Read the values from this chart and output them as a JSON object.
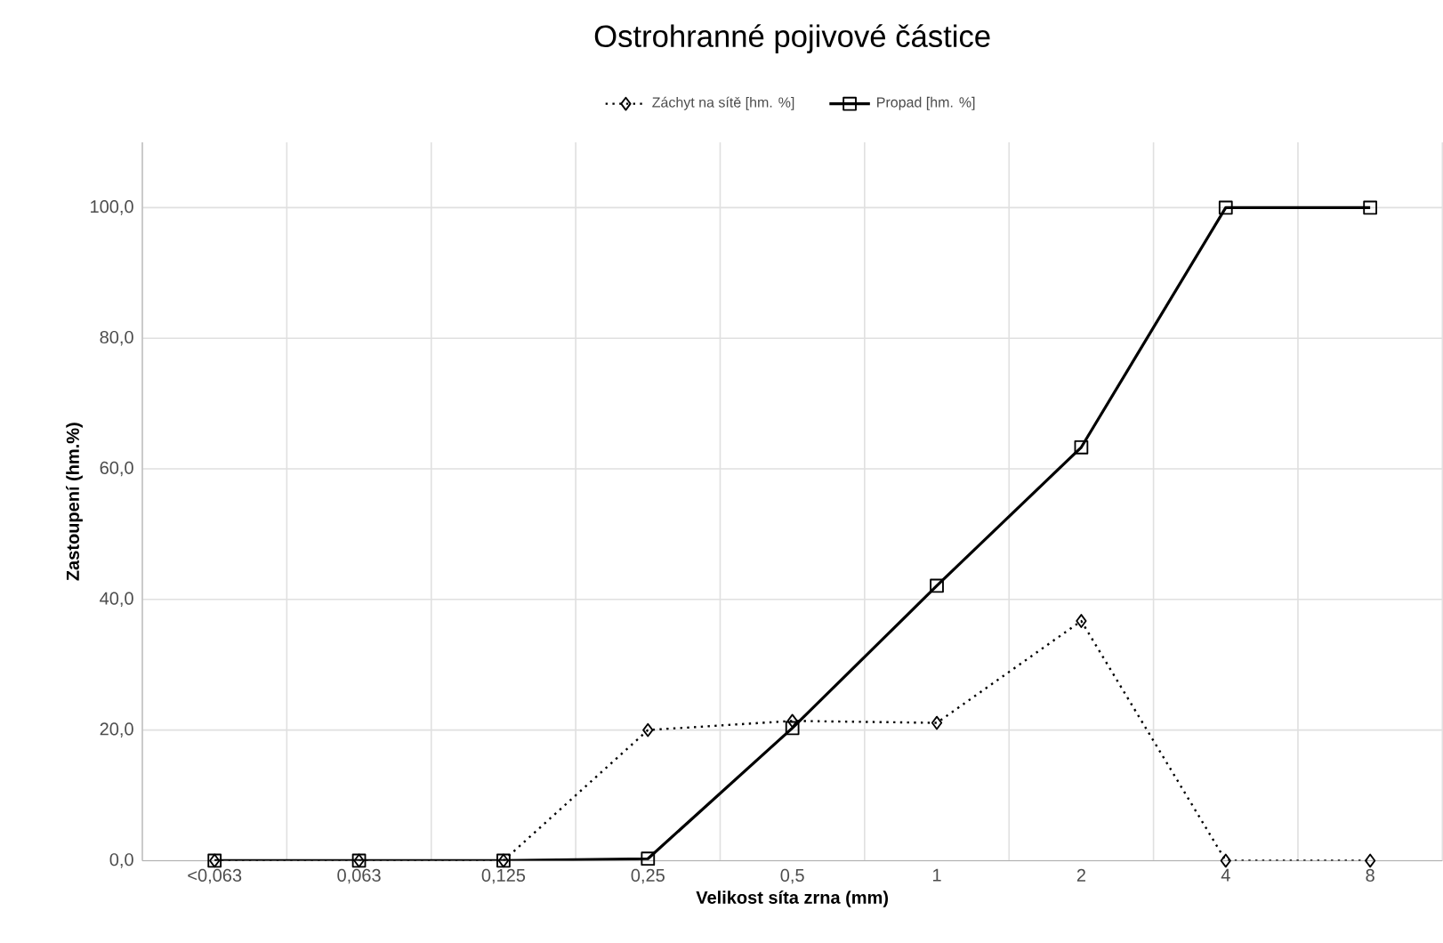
{
  "chart_data": {
    "type": "line",
    "title": "Ostrohranné pojivové částice",
    "xlabel": "Velikost síta zrna (mm)",
    "ylabel": "Zastoupení (hm.%)",
    "categories": [
      "<0,063",
      "0,063",
      "0,125",
      "0,25",
      "0,5",
      "1",
      "2",
      "4",
      "8"
    ],
    "series": [
      {
        "name": "Záchyt na sítě [hm. %]",
        "color": "#000000",
        "marker": "diamond",
        "line_style": "dotted",
        "values": [
          0,
          0,
          0,
          20.0,
          21.4,
          21.1,
          36.7,
          0,
          0
        ]
      },
      {
        "name": "Propad [hm. %]",
        "color": "#000000",
        "marker": "square",
        "line_style": "solid",
        "values": [
          0,
          0,
          0,
          0.3,
          20.3,
          42.1,
          63.3,
          100,
          100
        ]
      }
    ],
    "ylim": [
      0,
      110
    ],
    "yticks": [
      {
        "value": 0,
        "label": "0,0"
      },
      {
        "value": 20,
        "label": "20,0"
      },
      {
        "value": 40,
        "label": "40,0"
      },
      {
        "value": 60,
        "label": "60,0"
      },
      {
        "value": 80,
        "label": "80,0"
      },
      {
        "value": 100,
        "label": "100,0"
      }
    ],
    "grid": true,
    "legend": "top"
  }
}
